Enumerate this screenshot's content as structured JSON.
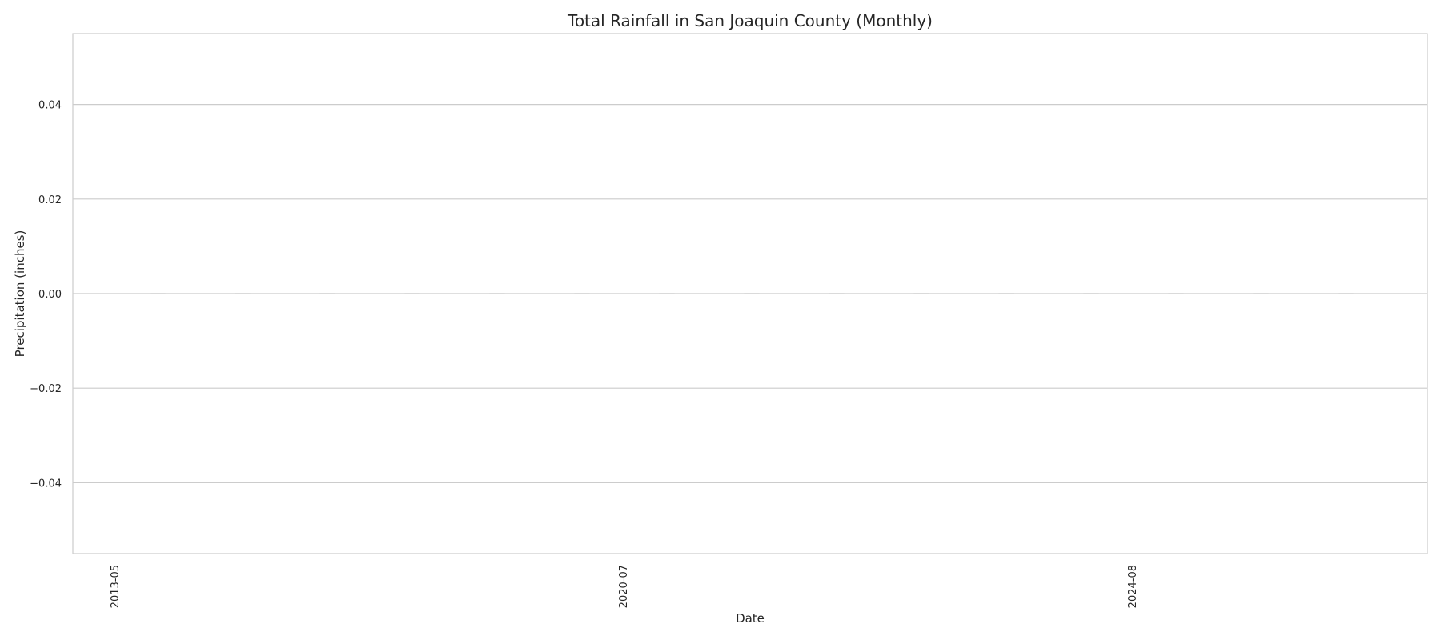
{
  "chart_data": {
    "type": "bar",
    "title": "Total Rainfall in San Joaquin County (Monthly)",
    "xlabel": "Date",
    "ylabel": "Precipitation (inches)",
    "ylim": [
      -0.055,
      0.055
    ],
    "y_ticks": [
      -0.04,
      -0.02,
      0.0,
      0.02,
      0.04
    ],
    "y_tick_labels": [
      "−0.04",
      "−0.02",
      "0.00",
      "0.02",
      "0.04"
    ],
    "x_tick_labels": [
      "2013-05",
      "2020-07",
      "2024-08"
    ],
    "categories": [
      "",
      "",
      "",
      "",
      "",
      "",
      "",
      "",
      "",
      "",
      "",
      "",
      "",
      "",
      ""
    ],
    "values": [
      0,
      0,
      0,
      0,
      0,
      0,
      0,
      0,
      0,
      0,
      0,
      0,
      0,
      0,
      0
    ],
    "grid": true,
    "colors": {
      "grid": "#cccccc",
      "spine": "#cccccc",
      "bar_edge": "#bfbfbf",
      "text": "#262626"
    }
  }
}
